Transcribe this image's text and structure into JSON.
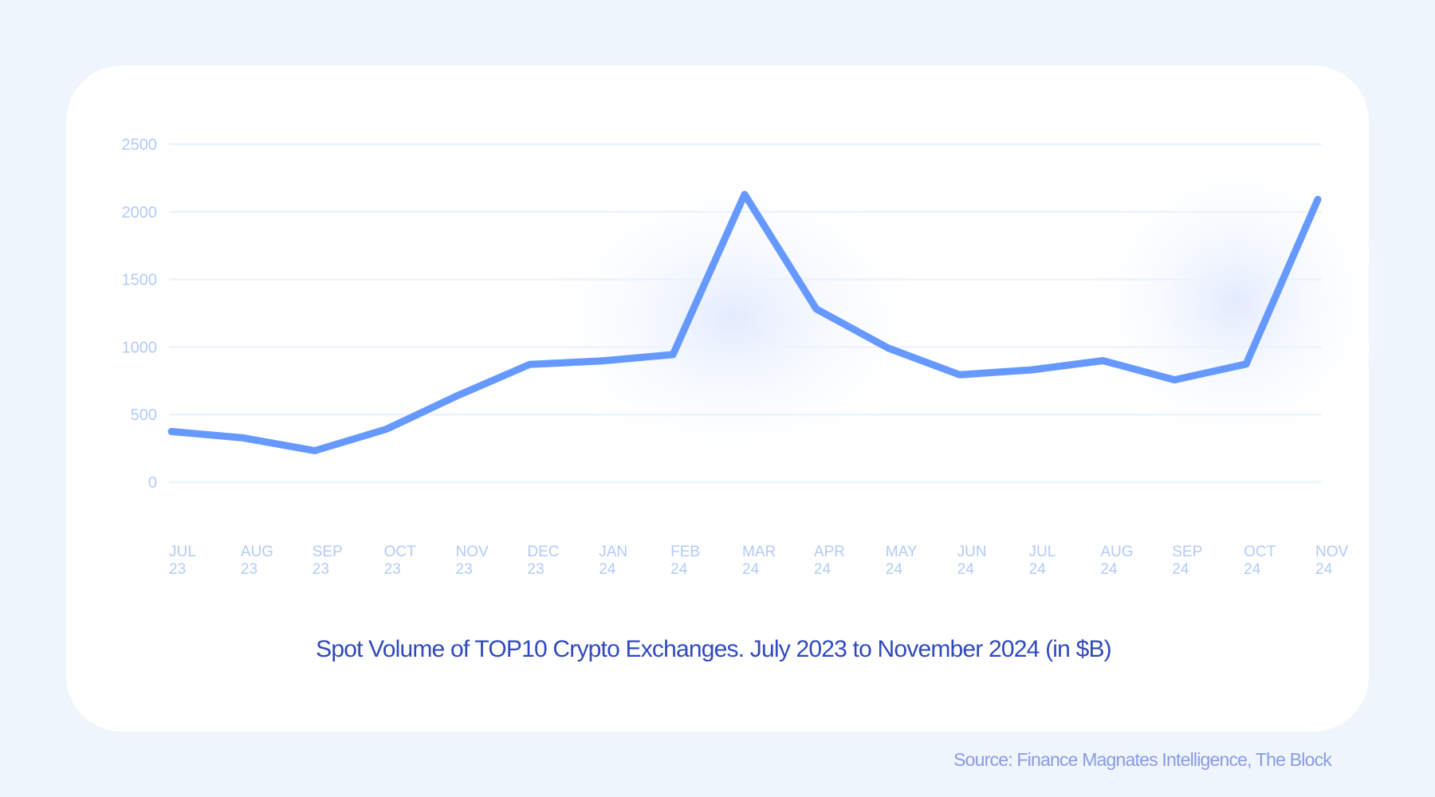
{
  "chart_data": {
    "type": "line",
    "title": "Spot Volume of TOP10 Crypto Exchanges. July 2023 to November 2024 (in $B)",
    "source": "Source: Finance Magnates Intelligence, The Block",
    "xlabel": "",
    "ylabel": "",
    "ylim": [
      0,
      2500
    ],
    "yticks": [
      "0",
      "500",
      "1000",
      "1500",
      "2000",
      "2500"
    ],
    "grid": true,
    "categories": [
      [
        "JUL",
        "23"
      ],
      [
        "AUG",
        "23"
      ],
      [
        "SEP",
        "23"
      ],
      [
        "OCT",
        "23"
      ],
      [
        "NOV",
        "23"
      ],
      [
        "DEC",
        "23"
      ],
      [
        "JAN",
        "24"
      ],
      [
        "FEB",
        "24"
      ],
      [
        "MAR",
        "24"
      ],
      [
        "APR",
        "24"
      ],
      [
        "MAY",
        "24"
      ],
      [
        "JUN",
        "24"
      ],
      [
        "JUL",
        "24"
      ],
      [
        "AUG",
        "24"
      ],
      [
        "SEP",
        "24"
      ],
      [
        "OCT",
        "24"
      ],
      [
        "NOV",
        "24"
      ]
    ],
    "values": [
      375,
      328,
      233,
      392,
      642,
      871,
      897,
      944,
      2129,
      1281,
      993,
      795,
      831,
      899,
      757,
      874,
      2092
    ],
    "colors": {
      "line": "#6699ff",
      "tick_label": "#b3cbf8",
      "grid": "#edf3fd",
      "title": "#3049bd",
      "source": "#8b9be0",
      "background": "#eef5fd"
    }
  }
}
